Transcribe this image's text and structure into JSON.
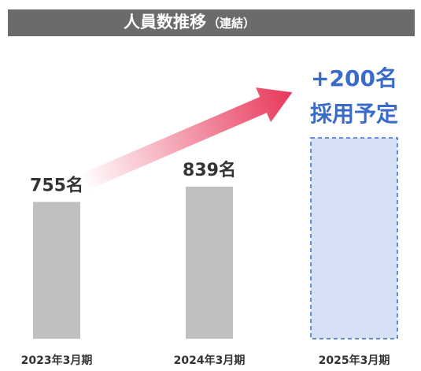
{
  "chart_data": {
    "type": "bar",
    "title": "人員数推移",
    "subtitle": "（連結）",
    "categories": [
      "2023年3月期",
      "2024年3月期",
      "2025年3月期"
    ],
    "values": [
      755,
      839,
      null
    ],
    "value_labels": [
      "755名",
      "839名",
      null
    ],
    "color": "#c0c0c0",
    "forecast": {
      "label": "+200名",
      "note": "採用予定",
      "color": "#3a6bc9"
    }
  }
}
